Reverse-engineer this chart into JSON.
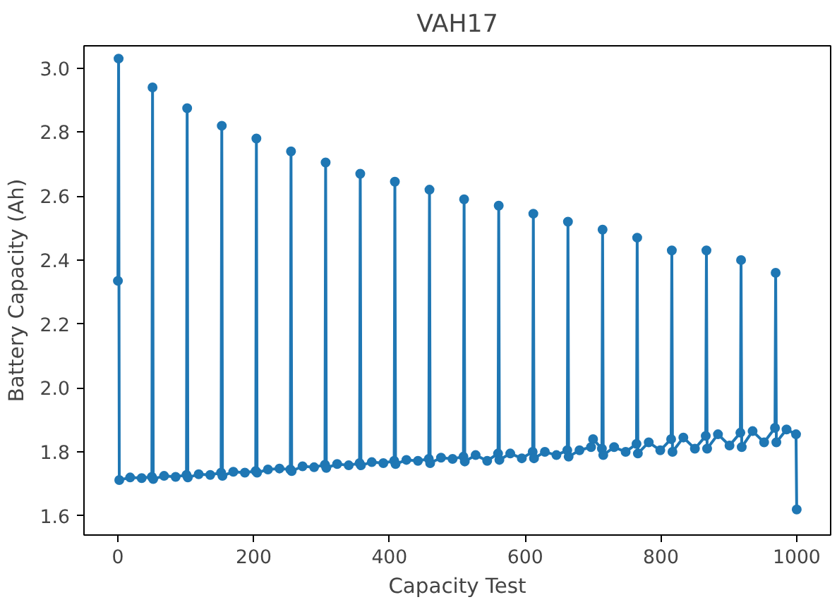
{
  "chart_data": {
    "type": "line",
    "title": "VAH17",
    "xlabel": "Capacity Test",
    "ylabel": "Battery Capacity (Ah)",
    "x": [
      0,
      1,
      2,
      18,
      35,
      50,
      51,
      52,
      68,
      85,
      101,
      102,
      103,
      119,
      136,
      152,
      153,
      154,
      170,
      187,
      203,
      204,
      205,
      221,
      238,
      254,
      255,
      256,
      272,
      289,
      305,
      306,
      307,
      323,
      340,
      356,
      357,
      358,
      374,
      391,
      407,
      408,
      409,
      425,
      442,
      458,
      459,
      460,
      476,
      493,
      509,
      510,
      511,
      527,
      544,
      560,
      561,
      562,
      578,
      595,
      611,
      612,
      613,
      629,
      646,
      662,
      663,
      664,
      680,
      697,
      700,
      713,
      714,
      715,
      731,
      748,
      764,
      765,
      766,
      782,
      799,
      815,
      816,
      817,
      833,
      850,
      866,
      867,
      868,
      884,
      901,
      917,
      918,
      919,
      935,
      952,
      968,
      969,
      970,
      985,
      999,
      1000
    ],
    "series": [
      {
        "color": "#1f77b4",
        "values": [
          2.335,
          3.03,
          1.712,
          1.72,
          1.718,
          1.722,
          2.94,
          1.715,
          1.725,
          1.722,
          1.728,
          2.875,
          1.72,
          1.73,
          1.728,
          1.735,
          2.82,
          1.725,
          1.738,
          1.735,
          1.74,
          2.78,
          1.735,
          1.745,
          1.748,
          1.745,
          2.74,
          1.74,
          1.755,
          1.752,
          1.76,
          2.705,
          1.75,
          1.762,
          1.758,
          1.765,
          2.67,
          1.758,
          1.768,
          1.765,
          1.772,
          2.645,
          1.762,
          1.775,
          1.772,
          1.778,
          2.62,
          1.765,
          1.782,
          1.778,
          1.785,
          2.59,
          1.77,
          1.79,
          1.772,
          1.795,
          2.57,
          1.775,
          1.795,
          1.78,
          1.8,
          2.545,
          1.78,
          1.8,
          1.79,
          1.805,
          2.52,
          1.785,
          1.805,
          1.815,
          1.84,
          1.81,
          2.495,
          1.79,
          1.815,
          1.8,
          1.825,
          2.47,
          1.795,
          1.83,
          1.805,
          1.84,
          2.43,
          1.8,
          1.845,
          1.81,
          1.85,
          2.43,
          1.81,
          1.855,
          1.82,
          1.86,
          2.4,
          1.815,
          1.865,
          1.83,
          1.875,
          2.36,
          1.83,
          1.87,
          1.855,
          1.62
        ]
      }
    ],
    "xlim": [
      -50,
      1050
    ],
    "ylim": [
      1.54,
      3.07
    ],
    "xticks": [
      0,
      200,
      400,
      600,
      800,
      1000
    ],
    "yticks": [
      {
        "value": 1.6,
        "label": "1.6"
      },
      {
        "value": 1.8,
        "label": "1.8"
      },
      {
        "value": 2.0,
        "label": "2.0"
      },
      {
        "value": 2.2,
        "label": "2.2"
      },
      {
        "value": 2.4,
        "label": "2.4"
      },
      {
        "value": 2.6,
        "label": "2.6"
      },
      {
        "value": 2.8,
        "label": "2.8"
      },
      {
        "value": 3.0,
        "label": "3.0"
      }
    ],
    "grid": false,
    "marker": "circle",
    "line_style": "solid"
  }
}
